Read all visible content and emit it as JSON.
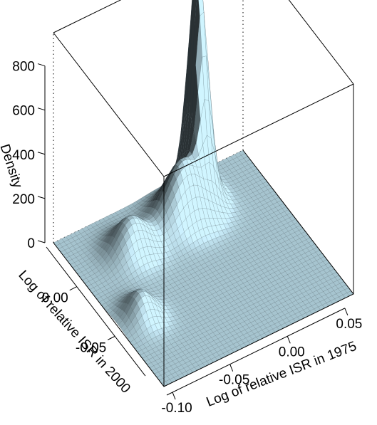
{
  "chart_data": {
    "type": "surface",
    "title": "",
    "xlabel": "Log of relative ISR in 1975",
    "ylabel": "Log of relative ISR in 2000",
    "zlabel": "Density",
    "x_ticks": [
      "-0.10",
      "-0.05",
      "0.00",
      "0.05"
    ],
    "y_ticks": [
      "0.00",
      "-0.05"
    ],
    "z_ticks": [
      "0",
      "200",
      "400",
      "600",
      "800"
    ],
    "xlim": [
      -0.105,
      0.06
    ],
    "ylim": [
      -0.105,
      0.04
    ],
    "zlim": [
      0,
      950
    ],
    "grid": false,
    "box": true,
    "surface_color": "#a6c4cf",
    "mesh_color": "#25343b",
    "peaks": [
      {
        "x": 0.012,
        "y": 0.027,
        "height": 980
      },
      {
        "x": -0.01,
        "y": 0.012,
        "height": 260
      },
      {
        "x": -0.06,
        "y": 0.006,
        "height": 150
      },
      {
        "x": -0.085,
        "y": -0.045,
        "height": 110
      }
    ]
  }
}
